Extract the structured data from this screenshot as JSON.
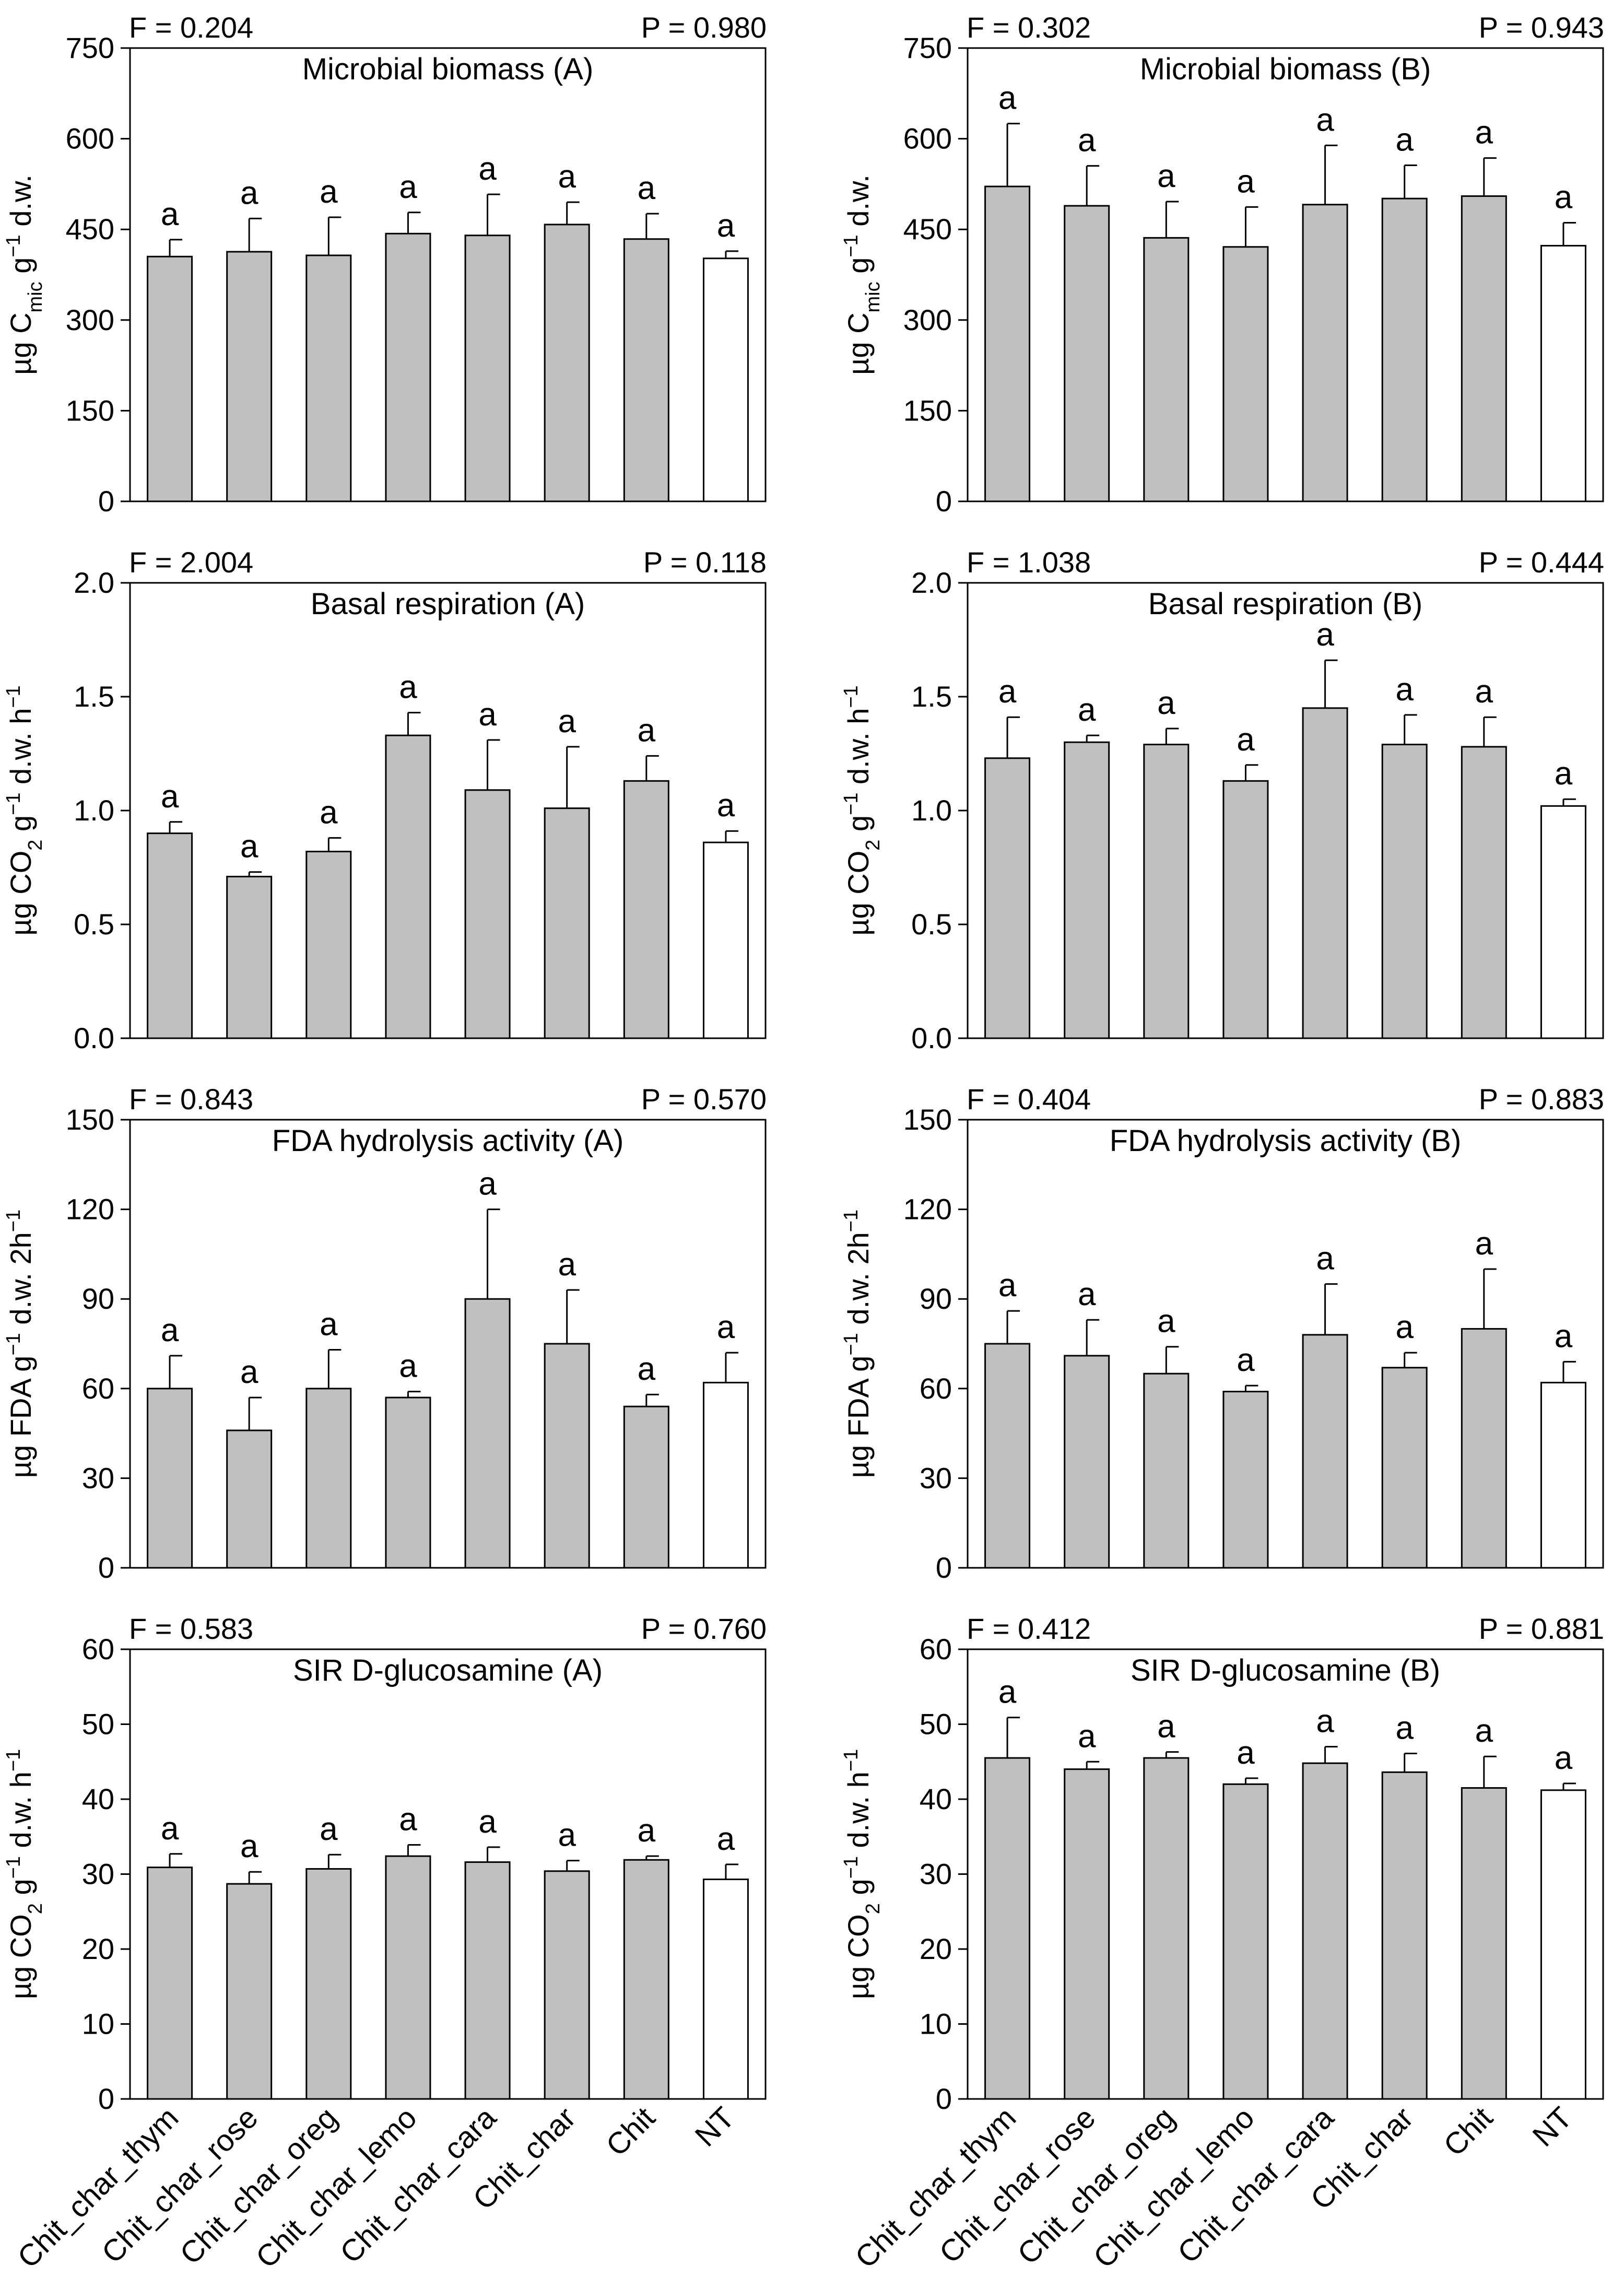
{
  "figure": {
    "categories": [
      "Chit_char_thym",
      "Chit_char_rose",
      "Chit_char_oreg",
      "Chit_char_lemo",
      "Chit_char_cara",
      "Chit_char",
      "Chit",
      "NT"
    ],
    "colors": {
      "treated_bar": "#c0c0c0",
      "control_bar": "#ffffff",
      "stroke": "#000000"
    },
    "control_category": "NT"
  },
  "chart_data": [
    {
      "type": "bar",
      "title": "Microbial biomass (A)",
      "stat_f": "F = 0.204",
      "stat_p": "P = 0.980",
      "ylabel": {
        "pre": "µg C",
        "sub": "mic",
        "mid": " g",
        "sup": "−1",
        "post": " d.w."
      },
      "ylim": [
        0,
        750
      ],
      "yticks": [
        0,
        150,
        300,
        450,
        600,
        750
      ],
      "yticklabels": [
        "0",
        "150",
        "300",
        "450",
        "600",
        "750"
      ],
      "values": [
        405,
        413,
        407,
        443,
        440,
        458,
        434,
        402
      ],
      "errors": [
        28,
        55,
        63,
        35,
        68,
        37,
        42,
        12
      ],
      "letters": [
        "a",
        "a",
        "a",
        "a",
        "a",
        "a",
        "a",
        "a"
      ]
    },
    {
      "type": "bar",
      "title": "Microbial biomass (B)",
      "stat_f": "F = 0.302",
      "stat_p": "P = 0.943",
      "ylabel": {
        "pre": "µg C",
        "sub": "mic",
        "mid": " g",
        "sup": "−1",
        "post": " d.w."
      },
      "ylim": [
        0,
        750
      ],
      "yticks": [
        0,
        150,
        300,
        450,
        600,
        750
      ],
      "yticklabels": [
        "0",
        "150",
        "300",
        "450",
        "600",
        "750"
      ],
      "values": [
        521,
        489,
        436,
        421,
        491,
        501,
        505,
        423
      ],
      "errors": [
        104,
        66,
        60,
        66,
        98,
        55,
        63,
        38
      ],
      "letters": [
        "a",
        "a",
        "a",
        "a",
        "a",
        "a",
        "a",
        "a"
      ]
    },
    {
      "type": "bar",
      "title": "Basal respiration (A)",
      "stat_f": "F = 2.004",
      "stat_p": "P = 0.118",
      "ylabel": {
        "pre": "µg CO",
        "sub": "2",
        "mid": " g",
        "sup": "−1",
        "post": " d.w. h",
        "sup2": "−1"
      },
      "ylim": [
        0,
        2.0
      ],
      "yticks": [
        0,
        0.5,
        1.0,
        1.5,
        2.0
      ],
      "yticklabels": [
        "0.0",
        "0.5",
        "1.0",
        "1.5",
        "2.0"
      ],
      "values": [
        0.9,
        0.71,
        0.82,
        1.33,
        1.09,
        1.01,
        1.13,
        0.86
      ],
      "errors": [
        0.05,
        0.02,
        0.06,
        0.1,
        0.22,
        0.27,
        0.11,
        0.05
      ],
      "letters": [
        "a",
        "a",
        "a",
        "a",
        "a",
        "a",
        "a",
        "a"
      ]
    },
    {
      "type": "bar",
      "title": "Basal respiration (B)",
      "stat_f": "F = 1.038",
      "stat_p": "P = 0.444",
      "ylabel": {
        "pre": "µg CO",
        "sub": "2",
        "mid": " g",
        "sup": "−1",
        "post": " d.w. h",
        "sup2": "−1"
      },
      "ylim": [
        0,
        2.0
      ],
      "yticks": [
        0,
        0.5,
        1.0,
        1.5,
        2.0
      ],
      "yticklabels": [
        "0.0",
        "0.5",
        "1.0",
        "1.5",
        "2.0"
      ],
      "values": [
        1.23,
        1.3,
        1.29,
        1.13,
        1.45,
        1.29,
        1.28,
        1.02
      ],
      "errors": [
        0.18,
        0.03,
        0.07,
        0.07,
        0.21,
        0.13,
        0.13,
        0.03
      ],
      "letters": [
        "a",
        "a",
        "a",
        "a",
        "a",
        "a",
        "a",
        "a"
      ]
    },
    {
      "type": "bar",
      "title": "FDA hydrolysis activity (A)",
      "stat_f": "F = 0.843",
      "stat_p": "P = 0.570",
      "ylabel": {
        "pre": "µg FDA g",
        "sup": "−1",
        "post": " d.w. 2h",
        "sup2": "−1"
      },
      "ylim": [
        0,
        150
      ],
      "yticks": [
        0,
        30,
        60,
        90,
        120,
        150
      ],
      "yticklabels": [
        "0",
        "30",
        "60",
        "90",
        "120",
        "150"
      ],
      "values": [
        60,
        46,
        60,
        57,
        90,
        75,
        54,
        62
      ],
      "errors": [
        11,
        11,
        13,
        2,
        30,
        18,
        4,
        10
      ],
      "letters": [
        "a",
        "a",
        "a",
        "a",
        "a",
        "a",
        "a",
        "a"
      ]
    },
    {
      "type": "bar",
      "title": "FDA hydrolysis activity (B)",
      "stat_f": "F = 0.404",
      "stat_p": "P = 0.883",
      "ylabel": {
        "pre": "µg FDA g",
        "sup": "−1",
        "post": " d.w. 2h",
        "sup2": "−1"
      },
      "ylim": [
        0,
        150
      ],
      "yticks": [
        0,
        30,
        60,
        90,
        120,
        150
      ],
      "yticklabels": [
        "0",
        "30",
        "60",
        "90",
        "120",
        "150"
      ],
      "values": [
        75,
        71,
        65,
        59,
        78,
        67,
        80,
        62
      ],
      "errors": [
        11,
        12,
        9,
        2,
        17,
        5,
        20,
        7
      ],
      "letters": [
        "a",
        "a",
        "a",
        "a",
        "a",
        "a",
        "a",
        "a"
      ]
    },
    {
      "type": "bar",
      "title": "SIR D-glucosamine (A)",
      "stat_f": "F = 0.583",
      "stat_p": "P = 0.760",
      "ylabel": {
        "pre": "µg CO",
        "sub": "2",
        "mid": " g",
        "sup": "−1",
        "post": " d.w. h",
        "sup2": "−1"
      },
      "ylim": [
        0,
        60
      ],
      "yticks": [
        0,
        10,
        20,
        30,
        40,
        50,
        60
      ],
      "yticklabels": [
        "0",
        "10",
        "20",
        "30",
        "40",
        "50",
        "60"
      ],
      "values": [
        30.9,
        28.7,
        30.7,
        32.4,
        31.6,
        30.4,
        31.9,
        29.3
      ],
      "errors": [
        1.8,
        1.6,
        1.9,
        1.5,
        2.0,
        1.4,
        0.5,
        2.0
      ],
      "letters": [
        "a",
        "a",
        "a",
        "a",
        "a",
        "a",
        "a",
        "a"
      ]
    },
    {
      "type": "bar",
      "title": "SIR D-glucosamine (B)",
      "stat_f": "F = 0.412",
      "stat_p": "P = 0.881",
      "ylabel": {
        "pre": "µg CO",
        "sub": "2",
        "mid": " g",
        "sup": "−1",
        "post": " d.w. h",
        "sup2": "−1"
      },
      "ylim": [
        0,
        60
      ],
      "yticks": [
        0,
        10,
        20,
        30,
        40,
        50,
        60
      ],
      "yticklabels": [
        "0",
        "10",
        "20",
        "30",
        "40",
        "50",
        "60"
      ],
      "values": [
        45.5,
        44.0,
        45.5,
        42.0,
        44.8,
        43.6,
        41.5,
        41.2
      ],
      "errors": [
        5.4,
        1.0,
        0.8,
        0.8,
        2.2,
        2.5,
        4.2,
        0.9
      ],
      "letters": [
        "a",
        "a",
        "a",
        "a",
        "a",
        "a",
        "a",
        "a"
      ]
    }
  ]
}
